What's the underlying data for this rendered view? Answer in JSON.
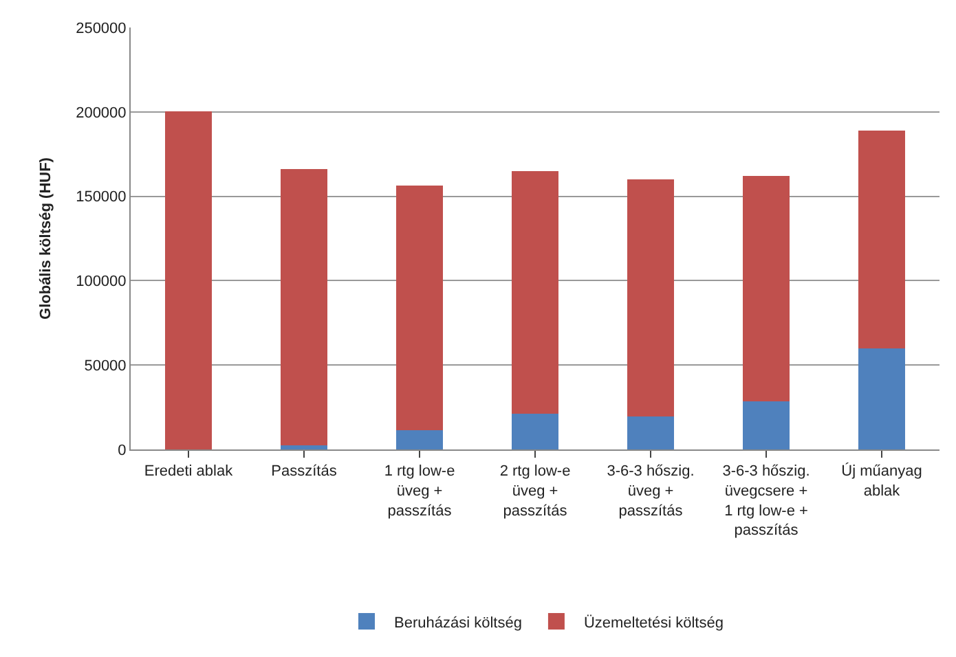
{
  "chart_data": {
    "type": "bar",
    "stacked": true,
    "ylabel": "Globális költség (HUF)",
    "categories": [
      "Eredeti ablak",
      "Passzítás",
      "1 rtg low-e\nüveg +\npasszítás",
      "2 rtg low-e\nüveg +\npasszítás",
      "3-6-3 hőszig.\nüveg +\npasszítás",
      "3-6-3 hőszig.\nüvegcsere +\n1 rtg low-e +\npasszítás",
      "Új műanyag\nablak"
    ],
    "series": [
      {
        "name": "Beruházási költség",
        "color": "#4f81bd",
        "values": [
          0,
          2500,
          11500,
          21000,
          19500,
          28500,
          60000
        ]
      },
      {
        "name": "Üzemeltetési költség",
        "color": "#c0504d",
        "values": [
          200500,
          163500,
          145000,
          144000,
          140500,
          133500,
          129000
        ]
      }
    ],
    "ylim": [
      0,
      250000
    ],
    "yticks": [
      0,
      50000,
      100000,
      150000,
      200000,
      250000
    ],
    "grid": "y",
    "legend": "bottom"
  }
}
